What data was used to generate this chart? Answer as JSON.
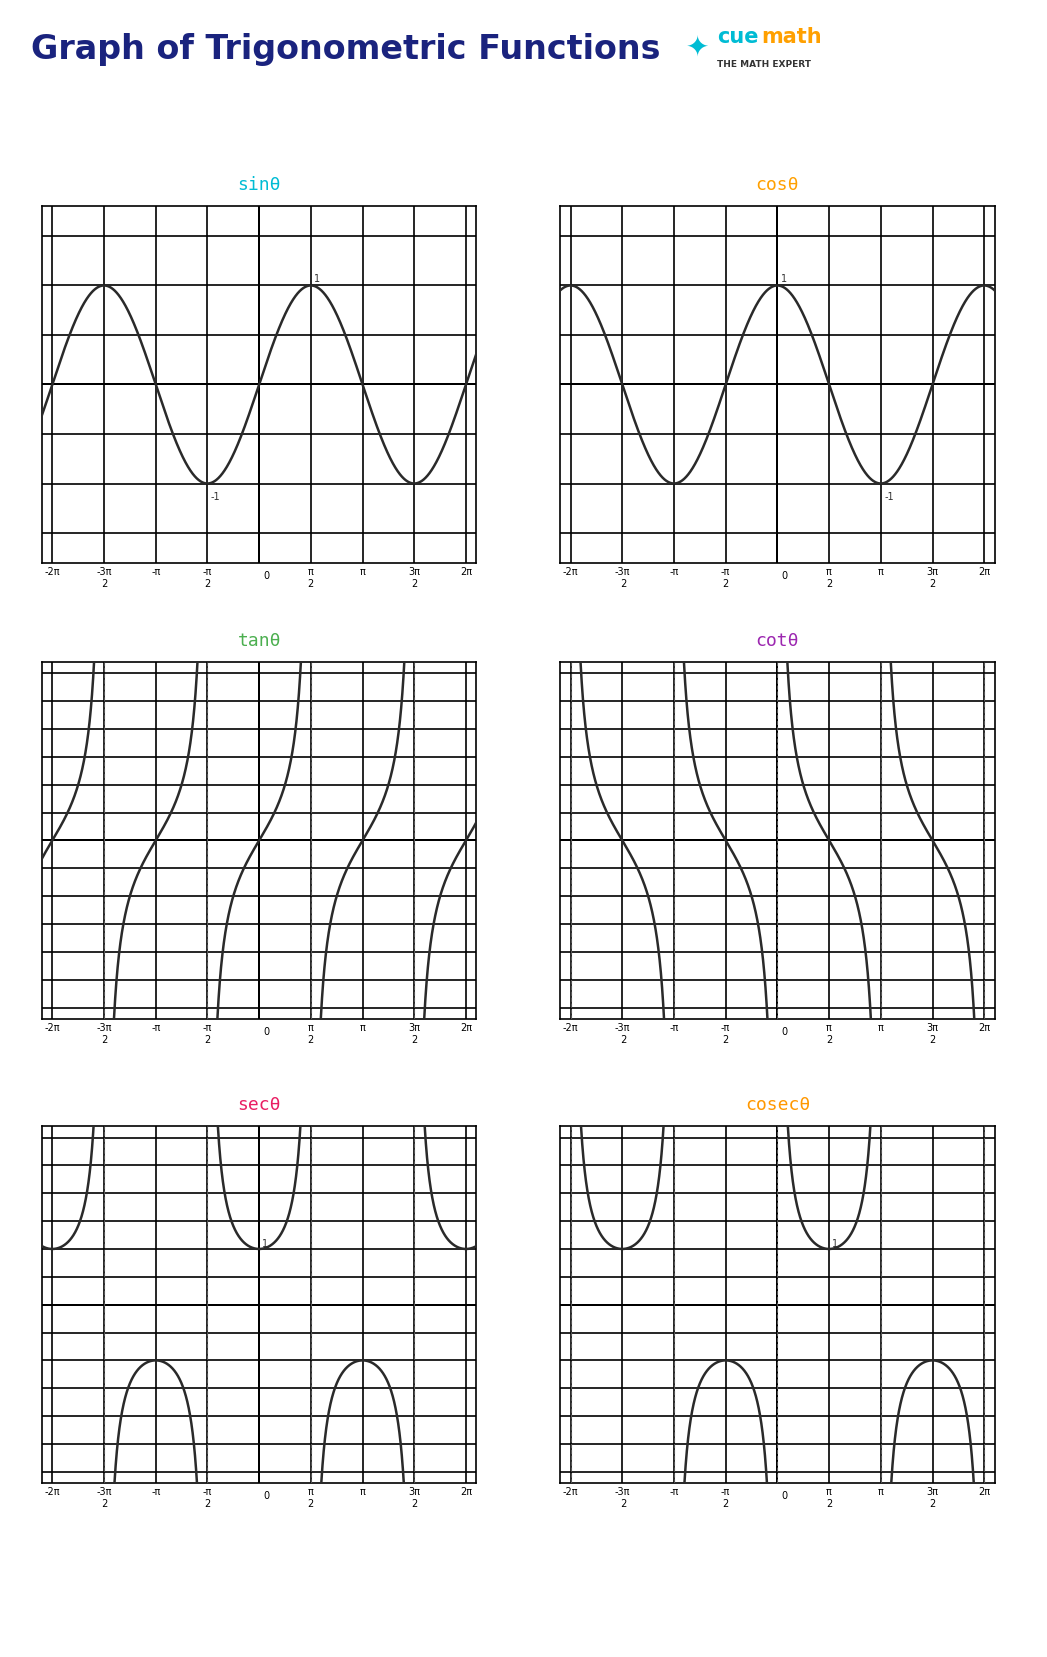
{
  "title": "Graph of Trigonometric Functions",
  "title_color": "#1a237e",
  "title_fontsize": 24,
  "bg_color": "#ffffff",
  "curve_color": "#2a2a2a",
  "curve_lw": 1.8,
  "functions": [
    "sinθ",
    "cosθ",
    "tanθ",
    "cotθ",
    "secθ",
    "cosecθ"
  ],
  "func_colors": [
    "#00bcd4",
    "#ffa000",
    "#4caf50",
    "#9c27b0",
    "#e91e63",
    "#ff9800"
  ],
  "xlim": [
    -6.6,
    6.6
  ],
  "ylim_sincos": [
    -1.8,
    1.8
  ],
  "ylim_other": [
    -3.2,
    3.2
  ],
  "grid_lw": 1.2,
  "grid_color": "#000000",
  "asym_color": "#555555",
  "asym_lw": 0.8,
  "cuemath_blue": "#00bcd4",
  "cuemath_orange": "#ffa000"
}
